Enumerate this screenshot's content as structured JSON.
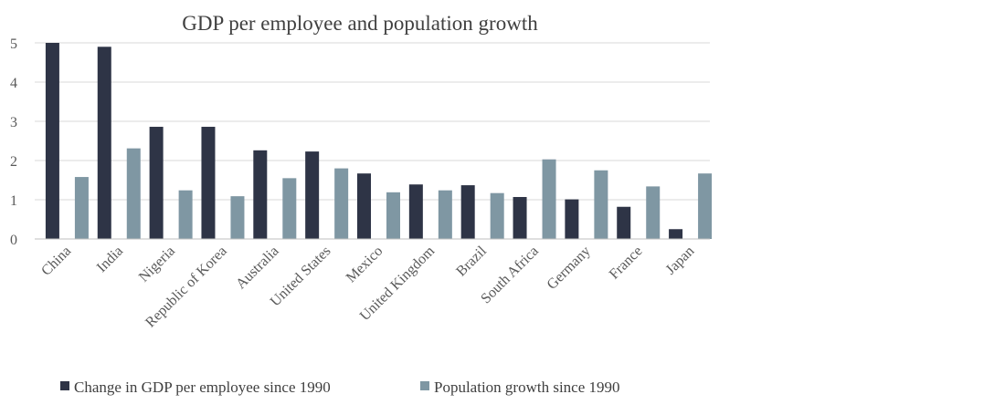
{
  "chart_data": {
    "type": "bar",
    "title": "GDP per employee and population growth",
    "xlabel": "",
    "ylabel": "",
    "ylim": [
      0,
      5
    ],
    "yticks": [
      0,
      1,
      2,
      3,
      4,
      5
    ],
    "grid": true,
    "legend_position": "bottom",
    "categories": [
      "China",
      "India",
      "Nigeria",
      "Republic of Korea",
      "Australia",
      "United States",
      "Mexico",
      "United Kingdom",
      "Brazil",
      "South Africa",
      "Germany",
      "France",
      "Japan"
    ],
    "series": [
      {
        "name": "Change in GDP per employee since 1990",
        "color": "#2e3446",
        "values": [
          5.0,
          4.9,
          2.86,
          2.86,
          2.26,
          2.23,
          1.67,
          1.39,
          1.37,
          1.07,
          1.01,
          0.82,
          0.25
        ]
      },
      {
        "name": "Population growth since 1990",
        "color": "#7f97a3",
        "values": [
          1.58,
          2.31,
          1.24,
          1.09,
          1.55,
          1.8,
          1.19,
          1.24,
          1.17,
          2.03,
          1.75,
          1.34,
          1.67
        ]
      }
    ]
  }
}
